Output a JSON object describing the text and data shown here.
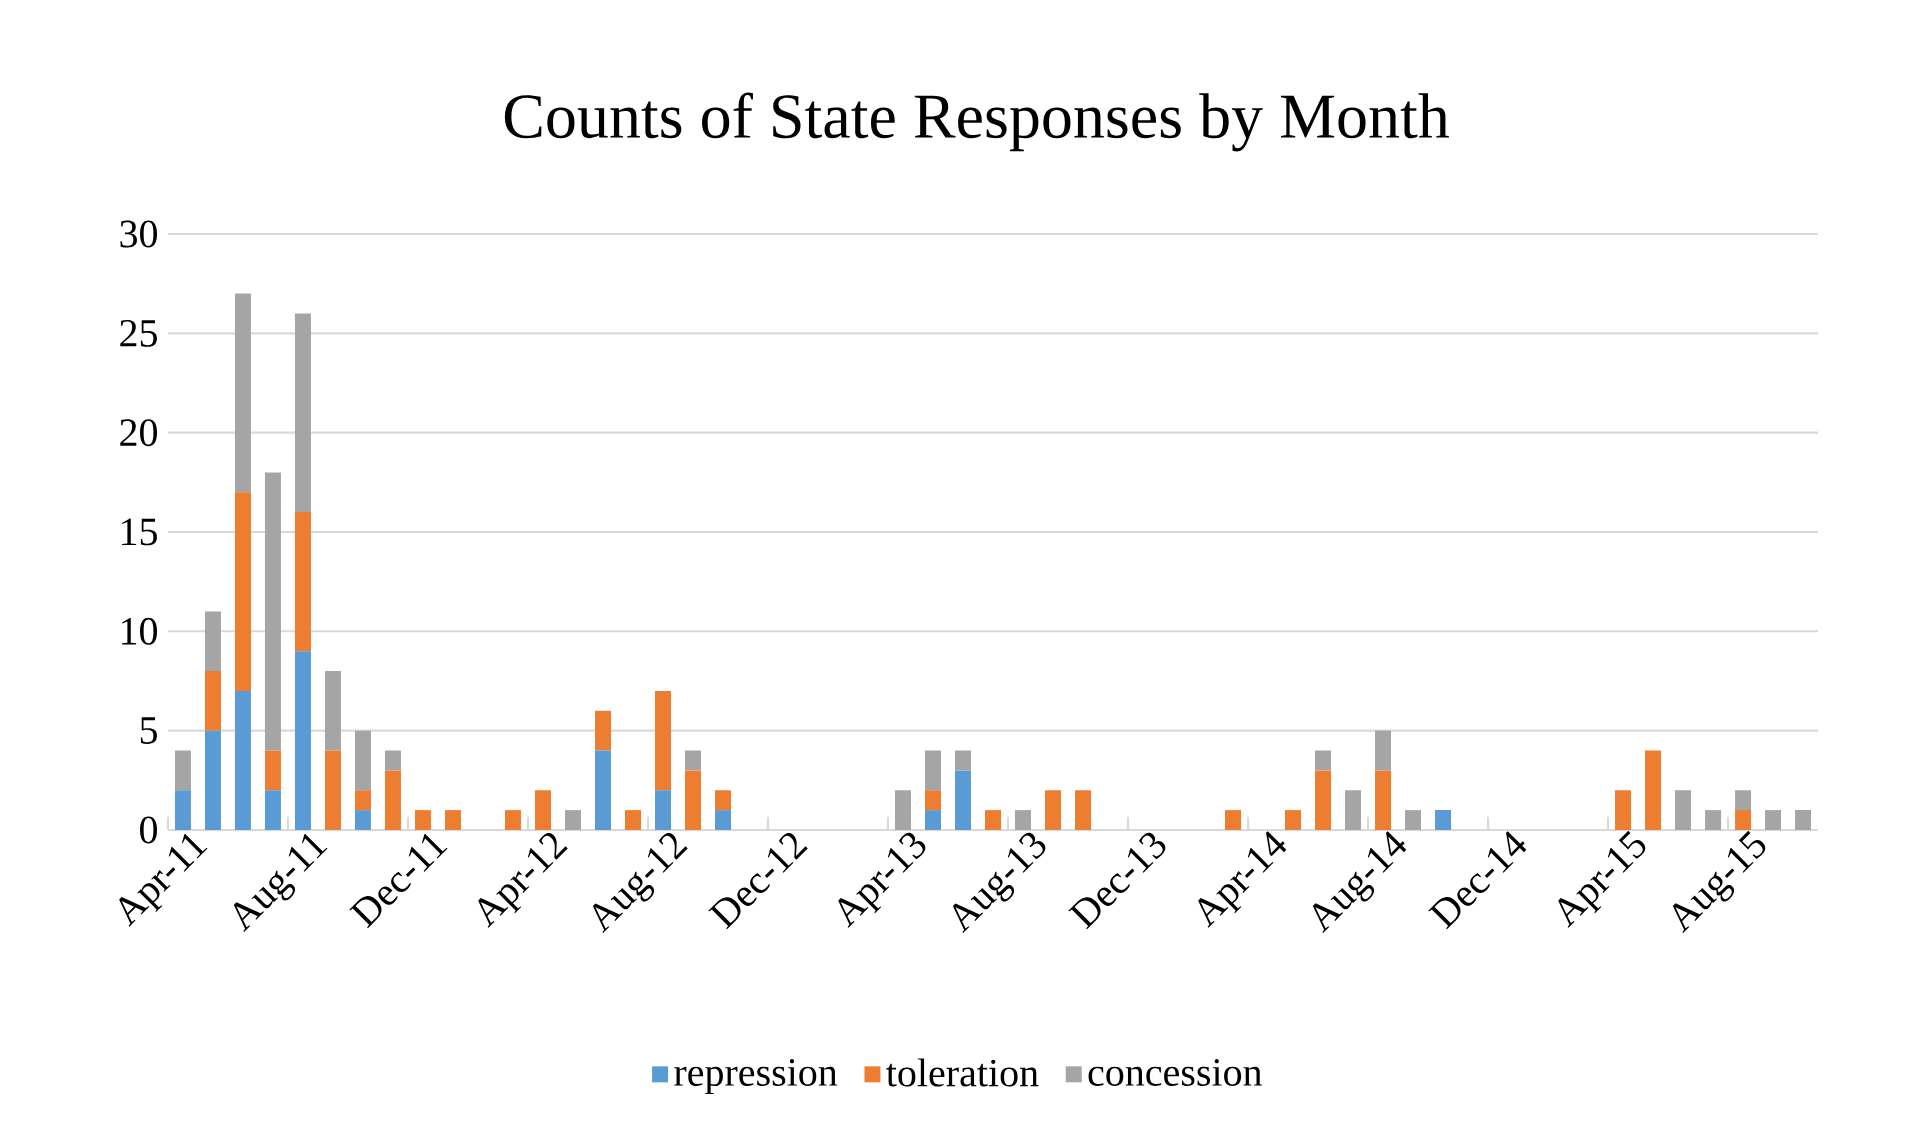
{
  "chart_data": {
    "type": "bar",
    "stacked": true,
    "title": "Counts of State Responses by Month",
    "categories": [
      "Apr-11",
      null,
      null,
      null,
      "Aug-11",
      null,
      null,
      null,
      "Dec-11",
      null,
      null,
      null,
      "Apr-12",
      null,
      null,
      null,
      "Aug-12",
      null,
      null,
      null,
      "Dec-12",
      null,
      null,
      null,
      "Apr-13",
      null,
      null,
      null,
      "Aug-13",
      null,
      null,
      null,
      "Dec-13",
      null,
      null,
      null,
      "Apr-14",
      null,
      null,
      null,
      "Aug-14",
      null,
      null,
      null,
      "Dec-14",
      null,
      null,
      null,
      "Apr-15",
      null,
      null,
      null,
      "Aug-15",
      null,
      null
    ],
    "series": [
      {
        "name": "repression",
        "color": "#5b9bd5",
        "values": [
          2,
          5,
          7,
          2,
          9,
          0,
          1,
          0,
          0,
          0,
          0,
          0,
          0,
          0,
          4,
          0,
          2,
          0,
          1,
          0,
          0,
          0,
          0,
          0,
          0,
          1,
          3,
          0,
          0,
          0,
          0,
          0,
          0,
          0,
          0,
          0,
          0,
          0,
          0,
          0,
          0,
          0,
          1,
          0,
          0,
          0,
          0,
          0,
          0,
          0,
          0,
          0,
          0,
          0,
          0
        ]
      },
      {
        "name": "toleration",
        "color": "#ed7d31",
        "values": [
          0,
          3,
          10,
          2,
          7,
          4,
          1,
          3,
          1,
          1,
          0,
          1,
          2,
          0,
          2,
          1,
          5,
          3,
          1,
          0,
          0,
          0,
          0,
          0,
          0,
          1,
          0,
          1,
          0,
          2,
          2,
          0,
          0,
          0,
          0,
          1,
          0,
          1,
          3,
          0,
          3,
          0,
          0,
          0,
          0,
          0,
          0,
          0,
          2,
          4,
          0,
          0,
          1,
          0,
          0
        ]
      },
      {
        "name": "concession",
        "color": "#a5a5a5",
        "values": [
          2,
          3,
          10,
          14,
          10,
          4,
          3,
          1,
          0,
          0,
          0,
          0,
          0,
          1,
          0,
          0,
          0,
          1,
          0,
          0,
          0,
          0,
          0,
          0,
          2,
          2,
          1,
          0,
          1,
          0,
          0,
          0,
          0,
          0,
          0,
          0,
          0,
          0,
          1,
          2,
          2,
          1,
          0,
          0,
          0,
          0,
          0,
          0,
          0,
          0,
          2,
          1,
          1,
          1,
          1
        ]
      }
    ],
    "ylim": [
      0,
      30
    ],
    "yticks": [
      0,
      5,
      10,
      15,
      20,
      25,
      30
    ],
    "grid": "y",
    "legend": "bottom"
  }
}
